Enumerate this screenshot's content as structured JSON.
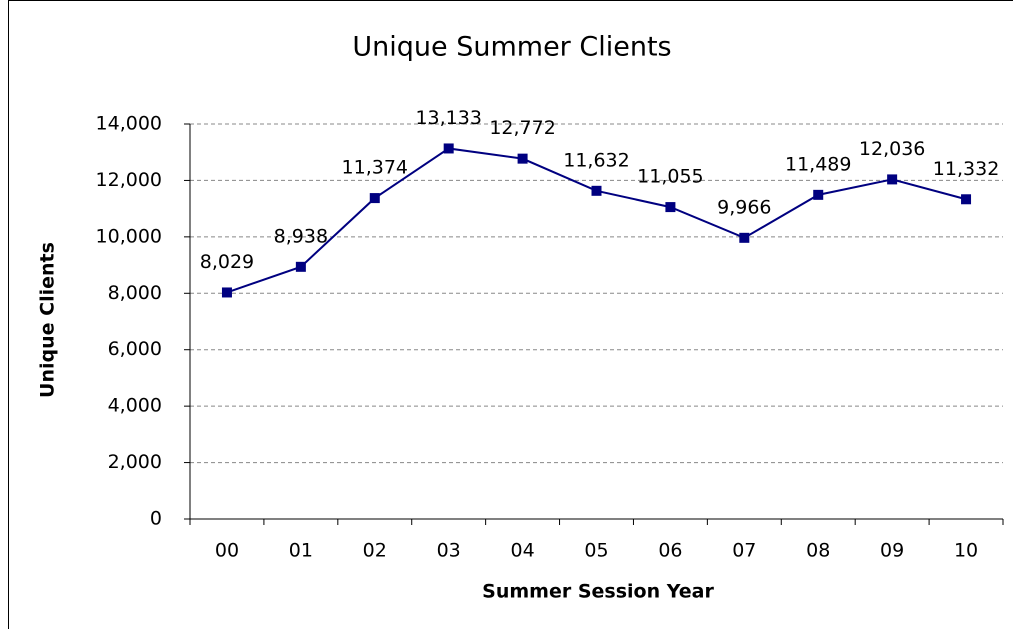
{
  "chart_data": {
    "type": "line",
    "title": "Unique Summer Clients",
    "x_label": "Summer Session Year",
    "y_label": "Unique Clients",
    "categories": [
      "00",
      "01",
      "02",
      "03",
      "04",
      "05",
      "06",
      "07",
      "08",
      "09",
      "10"
    ],
    "series": [
      {
        "name": "Unique Clients",
        "color": "#000080",
        "values": [
          8029,
          8938,
          11374,
          13133,
          12772,
          11632,
          11055,
          9966,
          11489,
          12036,
          11332
        ],
        "value_labels": [
          "8,029",
          "8,938",
          "11,374",
          "13,133",
          "12,772",
          "11,632",
          "11,055",
          "9,966",
          "11,489",
          "12,036",
          "11,332"
        ]
      }
    ],
    "ylim": [
      0,
      14000
    ],
    "yticks": [
      0,
      {
        "value": 2000,
        "label": "2,000"
      },
      {
        "value": 4000,
        "label": "4,000"
      },
      {
        "value": 6000,
        "label": "6,000"
      },
      {
        "value": 8000,
        "label": "8,000"
      },
      {
        "value": 10000,
        "label": "10,000"
      },
      {
        "value": 12000,
        "label": "12,000"
      },
      {
        "value": 14000,
        "label": "14,000"
      }
    ],
    "grid": true
  }
}
